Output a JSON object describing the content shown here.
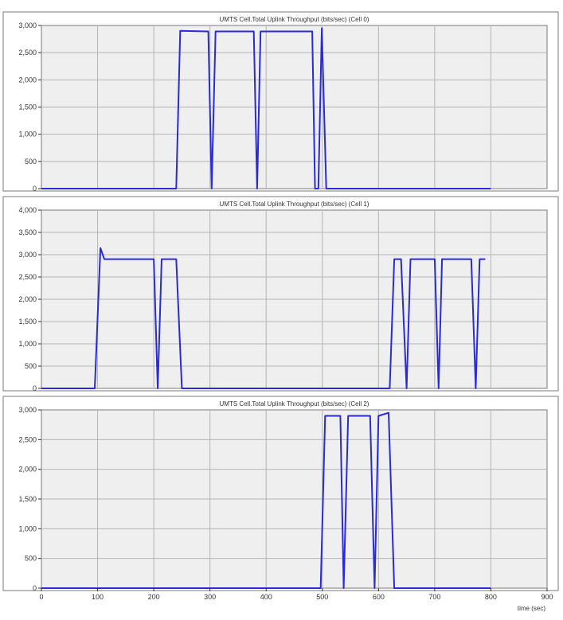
{
  "colors": {
    "line": "#2a2ad8",
    "plot_background": "#efefef",
    "grid": "#b4b4b4",
    "frame": "#7a7a7a"
  },
  "x_axis": {
    "ticks": [
      0,
      100,
      200,
      300,
      400,
      500,
      600,
      700,
      800,
      900
    ],
    "tick_labels": [
      "0",
      "100",
      "200",
      "300",
      "400",
      "500",
      "600",
      "700",
      "800",
      "900"
    ],
    "label": "time (sec)",
    "range": [
      0,
      900
    ]
  },
  "chart_data": [
    {
      "type": "line",
      "title": "UMTS Cell.Total Uplink Throughput (bits/sec) (Cell 0)",
      "ylim": [
        0,
        3000
      ],
      "y_ticks": [
        0,
        500,
        1000,
        1500,
        2000,
        2500,
        3000
      ],
      "y_tick_labels": [
        "0",
        "500",
        "1,000",
        "1,500",
        "2,000",
        "2,500",
        "3,000"
      ],
      "grid": true,
      "series": [
        {
          "x": [
            0,
            240,
            247,
            297,
            303,
            310,
            378,
            384,
            390,
            482,
            487,
            493,
            499,
            507,
            800
          ],
          "y": [
            0,
            0,
            2900,
            2890,
            0,
            2890,
            2890,
            0,
            2890,
            2890,
            0,
            0,
            2950,
            0,
            0
          ]
        }
      ]
    },
    {
      "type": "line",
      "title": "UMTS Cell.Total Uplink Throughput (bits/sec) (Cell 1)",
      "ylim": [
        0,
        4000
      ],
      "y_ticks": [
        0,
        500,
        1000,
        1500,
        2000,
        2500,
        3000,
        3500,
        4000
      ],
      "y_tick_labels": [
        "0",
        "500",
        "1,000",
        "1,500",
        "2,000",
        "2,500",
        "3,000",
        "3,500",
        "4,000"
      ],
      "grid": true,
      "series": [
        {
          "x": [
            0,
            95,
            105,
            112,
            200,
            207,
            214,
            240,
            250,
            620,
            628,
            640,
            650,
            657,
            700,
            707,
            713,
            765,
            773,
            780,
            790
          ],
          "y": [
            0,
            0,
            3150,
            2900,
            2900,
            0,
            2900,
            2900,
            0,
            0,
            2900,
            2900,
            0,
            2900,
            2900,
            0,
            2900,
            2900,
            0,
            2900,
            2900
          ]
        }
      ]
    },
    {
      "type": "line",
      "title": "UMTS Cell.Total Uplink Throughput (bits/sec) (Cell 2)",
      "ylim": [
        0,
        3000
      ],
      "y_ticks": [
        0,
        500,
        1000,
        1500,
        2000,
        2500,
        3000
      ],
      "y_tick_labels": [
        "0",
        "500",
        "1,000",
        "1,500",
        "2,000",
        "2,500",
        "3,000"
      ],
      "grid": true,
      "series": [
        {
          "x": [
            0,
            497,
            505,
            532,
            538,
            546,
            585,
            593,
            600,
            618,
            628,
            635,
            800
          ],
          "y": [
            0,
            0,
            2900,
            2900,
            0,
            2900,
            2900,
            0,
            2900,
            2950,
            0,
            0,
            0
          ]
        }
      ]
    }
  ]
}
